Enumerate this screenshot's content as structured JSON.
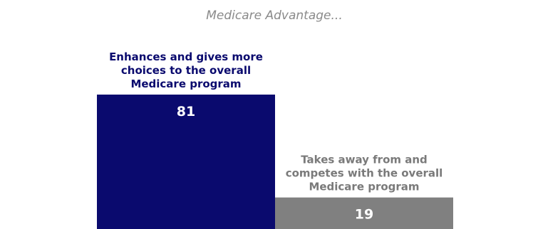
{
  "chart_data": {
    "type": "bar",
    "title": "Medicare Advantage...",
    "categories": [
      "Enhances and gives more choices to the overall Medicare program",
      "Takes away from and competes with the overall Medicare program"
    ],
    "category_lines": [
      [
        "Enhances and gives more",
        "choices to the overall",
        "Medicare program"
      ],
      [
        "Takes away from and",
        "competes with the overall",
        "Medicare program"
      ]
    ],
    "values": [
      81,
      19
    ],
    "colors": [
      "#0a0a6e",
      "#808080"
    ],
    "label_colors": [
      "#0a0a6e",
      "#7a7a7a"
    ],
    "value_label_color": "#ffffff",
    "ylim": [
      0,
      100
    ],
    "grid": false,
    "legend": "none",
    "xlabel": "",
    "ylabel": ""
  }
}
